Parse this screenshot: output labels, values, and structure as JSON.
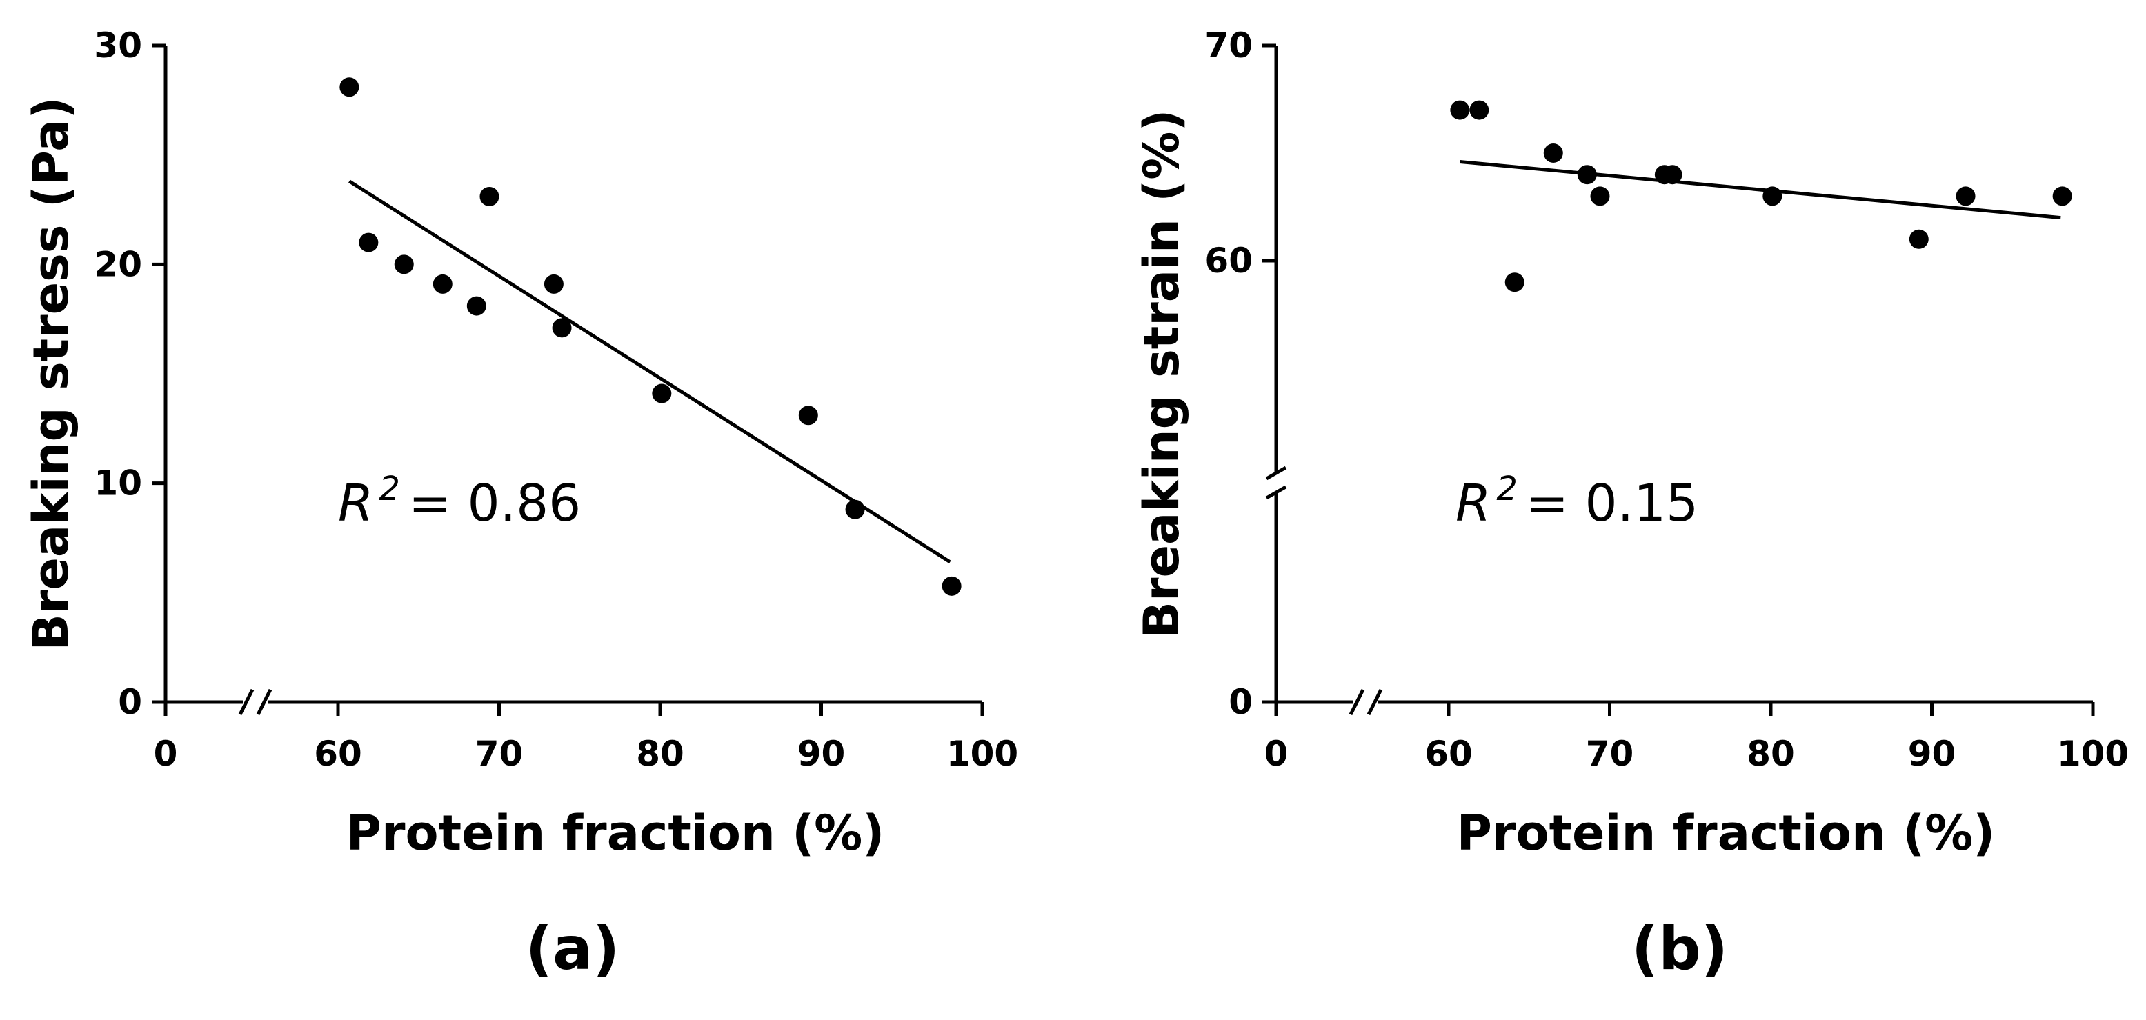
{
  "chart_data": [
    {
      "type": "scatter",
      "panel_label": "(a)",
      "xlabel": "Protein fraction (%)",
      "ylabel": "Breaking stress (Pa)",
      "xlim": [
        0,
        100
      ],
      "ylim": [
        0,
        30
      ],
      "x_ticks": [
        0,
        60,
        70,
        80,
        90,
        100
      ],
      "y_ticks": [
        0,
        10,
        20,
        30
      ],
      "x_break": [
        0,
        60
      ],
      "y_break": null,
      "annotation": {
        "symbol": "R",
        "superscript": "2",
        "value": "= 0.86"
      },
      "fit_line": {
        "x": [
          60.7,
          98
        ],
        "y": [
          23.8,
          6.4
        ]
      },
      "points": [
        {
          "x": 60.7,
          "y": 28.1
        },
        {
          "x": 61.9,
          "y": 21.0
        },
        {
          "x": 64.1,
          "y": 20.0
        },
        {
          "x": 66.5,
          "y": 19.1
        },
        {
          "x": 68.6,
          "y": 18.1
        },
        {
          "x": 69.4,
          "y": 23.1
        },
        {
          "x": 73.4,
          "y": 19.1
        },
        {
          "x": 73.9,
          "y": 17.1
        },
        {
          "x": 80.1,
          "y": 14.1
        },
        {
          "x": 89.2,
          "y": 13.1
        },
        {
          "x": 92.1,
          "y": 8.8
        },
        {
          "x": 98.1,
          "y": 5.3
        }
      ]
    },
    {
      "type": "scatter",
      "panel_label": "(b)",
      "xlabel": "Protein fraction (%)",
      "ylabel": "Breaking strain (%)",
      "xlim": [
        0,
        100
      ],
      "ylim": [
        0,
        70
      ],
      "x_ticks": [
        0,
        60,
        70,
        80,
        90,
        100
      ],
      "y_ticks": [
        0,
        60,
        70
      ],
      "x_break": [
        0,
        60
      ],
      "y_break": [
        0,
        50
      ],
      "annotation": {
        "symbol": "R",
        "superscript": "2",
        "value": "= 0.15"
      },
      "fit_line": {
        "x": [
          60.7,
          98
        ],
        "y": [
          64.6,
          62.0
        ]
      },
      "points": [
        {
          "x": 60.7,
          "y": 67.0
        },
        {
          "x": 61.9,
          "y": 67.0
        },
        {
          "x": 64.1,
          "y": 59.0
        },
        {
          "x": 66.5,
          "y": 65.0
        },
        {
          "x": 68.6,
          "y": 64.0
        },
        {
          "x": 69.4,
          "y": 63.0
        },
        {
          "x": 73.4,
          "y": 64.0
        },
        {
          "x": 73.9,
          "y": 64.0
        },
        {
          "x": 80.1,
          "y": 63.0
        },
        {
          "x": 89.2,
          "y": 61.0
        },
        {
          "x": 92.1,
          "y": 63.0
        },
        {
          "x": 98.1,
          "y": 63.0
        }
      ]
    }
  ]
}
